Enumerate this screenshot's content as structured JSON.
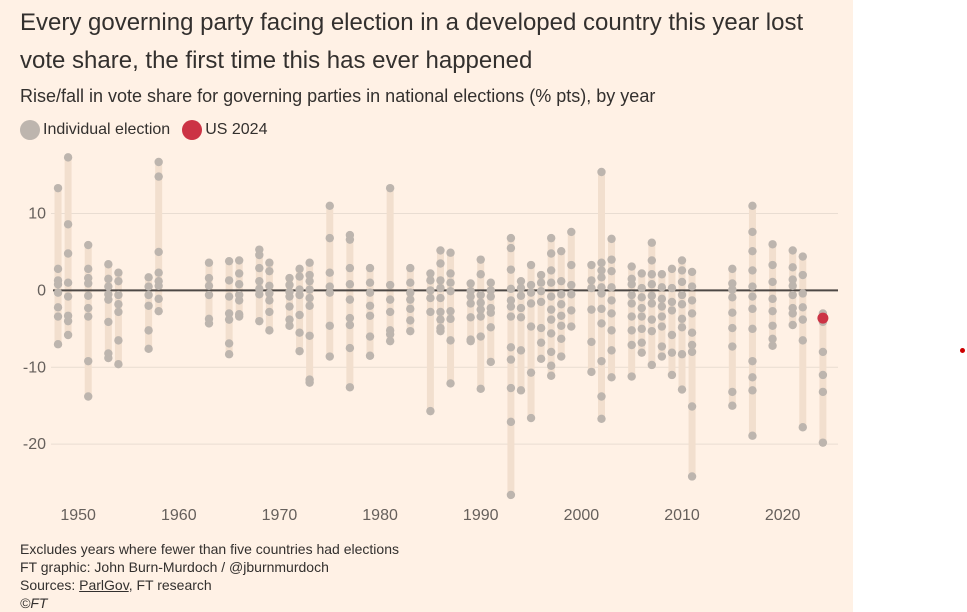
{
  "title": "Every governing party facing election in a developed country this year lost vote share, the first time this has ever happened",
  "subtitle": "Rise/fall in vote share for governing parties in national elections (% pts), by year",
  "legend": {
    "individual_label": "Individual election",
    "us_label": "US 2024"
  },
  "colors": {
    "background": "#fff1e5",
    "range_bar": "#f2dfce",
    "dot": "#bdb5ae",
    "highlight": "#cc3345",
    "zero_line": "#4d4845",
    "gridline": "#e9ddd2",
    "axis_text": "#66605c",
    "stray_dot": "#cc0000"
  },
  "footer": {
    "note": "Excludes years where fewer than five countries had elections",
    "credit": "FT graphic: John Burn-Murdoch / @jburnmurdoch",
    "sources_prefix": "Sources: ",
    "sources_link": "ParlGov",
    "sources_suffix": ", FT research",
    "copyright": "©FT"
  },
  "chart_data": {
    "type": "scatter",
    "title": "Rise/fall in vote share for governing parties in national elections (% pts), by year",
    "xlabel": "",
    "ylabel": "",
    "xlim": [
      1947.5,
      2025.5
    ],
    "ylim": [
      -27,
      18
    ],
    "xticks": [
      1950,
      1960,
      1970,
      1980,
      1990,
      2000,
      2010,
      2020
    ],
    "xtick_labels": [
      "1950",
      "1960",
      "1970",
      "1980",
      "1990",
      "2000",
      "2010",
      "2020"
    ],
    "yticks": [
      10,
      0,
      -10,
      -20
    ],
    "ytick_labels": [
      "10",
      "0",
      "-10",
      "-20"
    ],
    "grid": true,
    "highlight": {
      "name": "US 2024",
      "x": 2024,
      "y": -3.6
    },
    "series": [
      {
        "name": "Individual election",
        "points": [
          {
            "x": 1948,
            "values": [
              13.3,
              2.8,
              1.3,
              0.8,
              -0.3,
              -2.2,
              -3.4,
              -7.0
            ]
          },
          {
            "x": 1949,
            "values": [
              17.3,
              8.6,
              4.8,
              1.0,
              -0.8,
              -3.3,
              -4.0,
              -5.8
            ]
          },
          {
            "x": 1951,
            "values": [
              5.9,
              2.8,
              1.6,
              0.9,
              -0.7,
              -2.3,
              -3.4,
              -9.2,
              -13.8
            ]
          },
          {
            "x": 1953,
            "values": [
              3.4,
              1.5,
              0.5,
              -0.5,
              -1.2,
              -4.1,
              -8.2,
              -8.8
            ]
          },
          {
            "x": 1954,
            "values": [
              2.3,
              1.2,
              -0.6,
              -1.8,
              -2.8,
              -6.5,
              -9.6
            ]
          },
          {
            "x": 1957,
            "values": [
              1.7,
              0.5,
              -0.6,
              -2.0,
              -5.2,
              -7.6
            ]
          },
          {
            "x": 1958,
            "values": [
              16.7,
              14.8,
              5.0,
              2.3,
              1.2,
              0.6,
              -1.1,
              -2.7
            ]
          },
          {
            "x": 1963,
            "values": [
              3.6,
              1.6,
              0.6,
              -0.6,
              -3.7,
              -4.3
            ]
          },
          {
            "x": 1965,
            "values": [
              3.8,
              1.3,
              -0.8,
              -3.0,
              -3.8,
              -6.9,
              -8.3
            ]
          },
          {
            "x": 1966,
            "values": [
              3.9,
              2.2,
              0.8,
              -0.6,
              -1.3,
              -3.1,
              -3.4
            ]
          },
          {
            "x": 1968,
            "values": [
              5.3,
              4.6,
              2.9,
              1.2,
              0.2,
              -0.5,
              -4.0
            ]
          },
          {
            "x": 1969,
            "values": [
              3.6,
              2.5,
              0.6,
              -0.4,
              -1.3,
              -2.8,
              -5.2
            ]
          },
          {
            "x": 1971,
            "values": [
              1.6,
              0.7,
              -0.2,
              -0.8,
              -2.1,
              -3.8,
              -4.6
            ]
          },
          {
            "x": 1972,
            "values": [
              2.8,
              1.8,
              0.1,
              -0.6,
              -3.2,
              -5.5,
              -7.9
            ]
          },
          {
            "x": 1973,
            "values": [
              3.6,
              2.0,
              1.2,
              0.1,
              -1.0,
              -2.0,
              -5.9,
              -11.6,
              -12.0
            ]
          },
          {
            "x": 1975,
            "values": [
              11.0,
              6.8,
              2.3,
              0.5,
              -0.3,
              -4.6,
              -8.6
            ]
          },
          {
            "x": 1977,
            "values": [
              7.2,
              6.6,
              2.9,
              0.8,
              -1.2,
              -3.6,
              -4.5,
              -7.5,
              -12.6
            ]
          },
          {
            "x": 1979,
            "values": [
              2.9,
              1.0,
              -0.3,
              -2.0,
              -3.3,
              -6.0,
              -8.5
            ]
          },
          {
            "x": 1981,
            "values": [
              13.3,
              0.7,
              -1.2,
              -2.8,
              -5.2,
              -5.7,
              -6.6
            ]
          },
          {
            "x": 1983,
            "values": [
              2.9,
              1.0,
              -0.3,
              -1.2,
              -2.4,
              -3.9,
              -5.3
            ]
          },
          {
            "x": 1985,
            "values": [
              2.2,
              1.3,
              0.0,
              -1.0,
              -2.8,
              -15.7
            ]
          },
          {
            "x": 1986,
            "values": [
              5.2,
              3.5,
              1.3,
              0.3,
              -1.0,
              -2.8,
              -3.8,
              -4.9,
              -5.3
            ]
          },
          {
            "x": 1987,
            "values": [
              4.9,
              2.2,
              1.0,
              -0.1,
              -2.7,
              -3.7,
              -6.5,
              -12.1
            ]
          },
          {
            "x": 1989,
            "values": [
              0.9,
              -0.1,
              -0.8,
              -1.7,
              -3.5,
              -6.4,
              -6.6
            ]
          },
          {
            "x": 1990,
            "values": [
              4.0,
              2.1,
              -0.6,
              -1.6,
              -2.5,
              -3.4,
              -6.0,
              -12.8
            ]
          },
          {
            "x": 1991,
            "values": [
              1.0,
              0.0,
              -0.8,
              -2.3,
              -2.9,
              -4.8,
              -9.3
            ]
          },
          {
            "x": 1993,
            "values": [
              6.8,
              5.5,
              2.7,
              0.2,
              -1.3,
              -2.1,
              -3.4,
              -7.4,
              -9.0,
              -12.7,
              -17.1,
              -26.6
            ]
          },
          {
            "x": 1994,
            "values": [
              1.2,
              0.3,
              -0.7,
              -2.3,
              -3.5,
              -7.8,
              -13.0
            ]
          },
          {
            "x": 1995,
            "values": [
              3.3,
              0.7,
              -0.3,
              -1.7,
              -4.7,
              -10.7,
              -16.6
            ]
          },
          {
            "x": 1996,
            "values": [
              2.0,
              1.0,
              -0.1,
              -1.5,
              -4.9,
              -6.8,
              -8.9
            ]
          },
          {
            "x": 1997,
            "values": [
              6.8,
              4.8,
              2.6,
              1.0,
              -0.8,
              -2.5,
              -3.8,
              -5.6,
              -8.0,
              -9.8,
              -11.1
            ]
          },
          {
            "x": 1998,
            "values": [
              5.1,
              1.2,
              -0.5,
              -1.8,
              -3.3,
              -4.6,
              -6.3,
              -8.6
            ]
          },
          {
            "x": 1999,
            "values": [
              7.6,
              3.3,
              0.7,
              -0.5,
              -2.6,
              -4.7
            ]
          },
          {
            "x": 2001,
            "values": [
              3.3,
              1.3,
              0.3,
              -2.5,
              -6.7,
              -10.6
            ]
          },
          {
            "x": 2002,
            "values": [
              15.4,
              3.6,
              2.6,
              1.7,
              0.4,
              -0.4,
              -2.4,
              -4.3,
              -9.2,
              -13.8,
              -16.7
            ]
          },
          {
            "x": 2003,
            "values": [
              6.7,
              4.0,
              2.5,
              0.4,
              -1.3,
              -3.0,
              -5.2,
              -7.8,
              -11.3
            ]
          },
          {
            "x": 2005,
            "values": [
              3.1,
              1.5,
              0.8,
              -0.6,
              -1.7,
              -3.4,
              -5.2,
              -7.1,
              -11.2
            ]
          },
          {
            "x": 2006,
            "values": [
              2.2,
              0.3,
              -0.9,
              -2.3,
              -3.4,
              -5.0,
              -6.8,
              -8.1
            ]
          },
          {
            "x": 2007,
            "values": [
              6.2,
              3.9,
              2.1,
              0.8,
              -0.7,
              -1.7,
              -3.8,
              -5.3,
              -9.7
            ]
          },
          {
            "x": 2008,
            "values": [
              2.1,
              0.4,
              -1.1,
              -2.1,
              -3.4,
              -4.7,
              -7.3,
              -8.6
            ]
          },
          {
            "x": 2009,
            "values": [
              2.8,
              0.3,
              -1.5,
              -2.6,
              -5.8,
              -8.1,
              -11.0
            ]
          },
          {
            "x": 2010,
            "values": [
              3.9,
              2.6,
              1.1,
              -0.6,
              -1.8,
              -3.7,
              -4.8,
              -8.3,
              -12.9
            ]
          },
          {
            "x": 2011,
            "values": [
              2.4,
              0.5,
              -1.3,
              -3.0,
              -5.5,
              -7.1,
              -8.0,
              -15.1,
              -24.2
            ]
          },
          {
            "x": 2015,
            "values": [
              2.8,
              0.9,
              0.1,
              -0.9,
              -2.9,
              -4.9,
              -7.3,
              -13.2,
              -15.0
            ]
          },
          {
            "x": 2017,
            "values": [
              11.0,
              7.6,
              5.1,
              2.6,
              0.5,
              -0.8,
              -2.4,
              -5.0,
              -9.2,
              -11.3,
              -13.0,
              -18.9
            ]
          },
          {
            "x": 2019,
            "values": [
              6.0,
              3.3,
              1.1,
              -1.1,
              -2.7,
              -4.6,
              -6.3,
              -7.2
            ]
          },
          {
            "x": 2021,
            "values": [
              5.2,
              3.0,
              1.4,
              0.6,
              -0.6,
              -2.3,
              -3.0,
              -4.5
            ]
          },
          {
            "x": 2022,
            "values": [
              4.4,
              2.0,
              -0.4,
              -2.2,
              -3.8,
              -6.5,
              -17.8
            ]
          },
          {
            "x": 2024,
            "values": [
              -3.0,
              -3.6,
              -4.1,
              -8.0,
              -11.0,
              -13.2,
              -19.8
            ]
          }
        ]
      }
    ]
  }
}
